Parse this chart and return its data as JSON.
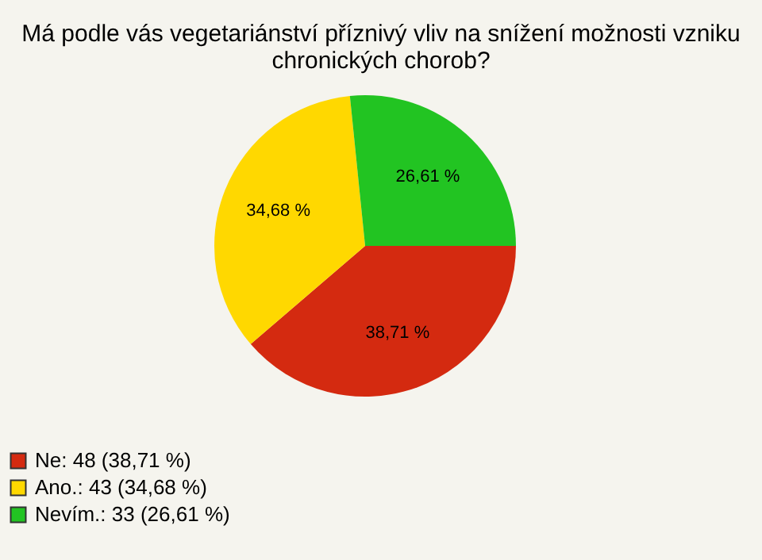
{
  "chart_data": {
    "type": "pie",
    "title": [
      "Má podle vás vegetariánství příznivý vliv na snížení možnosti vzniku",
      "chronických chorob?"
    ],
    "categories": [
      "Ne: 48 (38,71 %)",
      "Ano.: 43 (34,68 %)",
      "Nevím.: 33 (26,61 %)"
    ],
    "values": [
      38.71,
      34.68,
      26.61
    ],
    "value_labels": [
      "38,71 %",
      "34,68 %",
      "26,61 %"
    ],
    "colors": [
      "#d42a10",
      "#ffd800",
      "#22c422"
    ],
    "legend": "bottom left"
  }
}
